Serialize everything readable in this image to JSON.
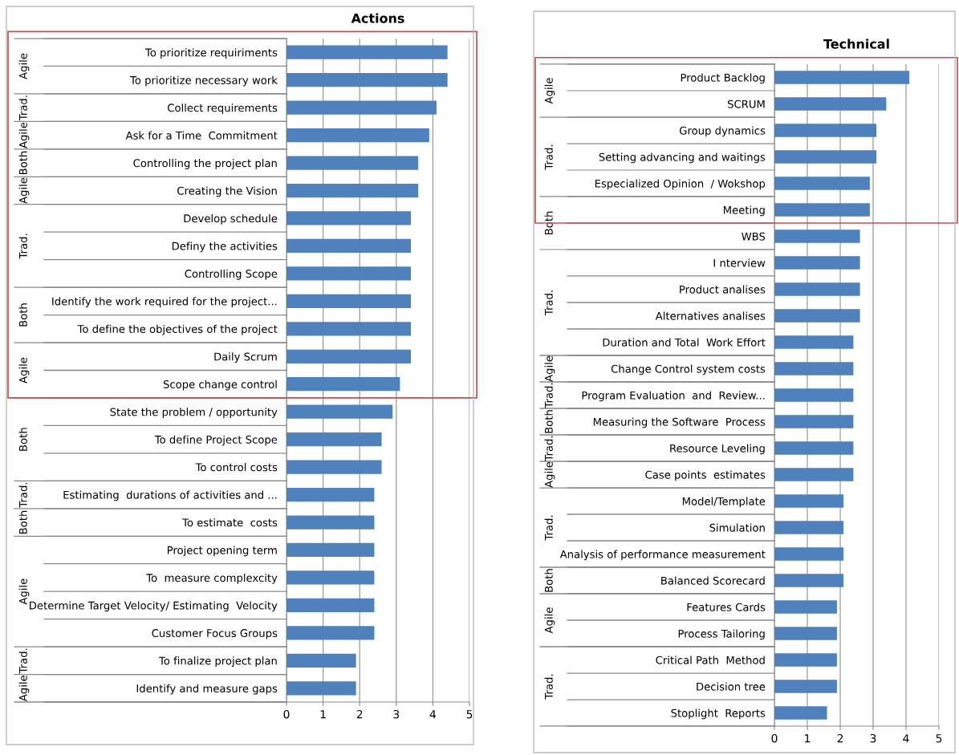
{
  "chart_data": [
    {
      "type": "bar",
      "orientation": "horizontal",
      "title": "Actions",
      "categories": [
        "To prioritize requiriments",
        "To prioritize necessary work",
        "Collect requirements",
        "Ask for a Time  Commitment",
        "Controlling the project plan",
        "Creating the Vision",
        "Develop schedule",
        "Definy the activities",
        "Controlling Scope",
        "Identify the work required for the project...",
        "To define the objectives of the project",
        "Daily Scrum",
        "Scope change control",
        "State the problem / opportunity",
        "To define Project Scope",
        "To control costs",
        "Estimating  durations of activities and ...",
        "To estimate  costs",
        "Project opening term",
        "To  measure complexcity",
        "Determine Target Velocity/ Estimating  Velocity",
        "Customer Focus Groups",
        "To finalize project plan",
        "Identify and measure gaps"
      ],
      "values": [
        4.4,
        4.4,
        4.1,
        3.9,
        3.6,
        3.6,
        3.4,
        3.4,
        3.4,
        3.4,
        3.4,
        3.4,
        3.1,
        2.9,
        2.6,
        2.6,
        2.4,
        2.4,
        2.4,
        2.4,
        2.4,
        2.4,
        1.9,
        1.9
      ],
      "color": "#4f81bd",
      "xlim": [
        0,
        5
      ],
      "xticks": [
        0,
        1,
        2,
        3,
        4,
        5
      ],
      "grid": "x",
      "annotations": [
        "Agile",
        "Trad.",
        "Agile",
        "Both",
        "Agile",
        "Trad.",
        "Both",
        "Agile",
        "Both",
        "Trad.",
        "Both",
        "Agile",
        "Trad.",
        "Agile"
      ]
    },
    {
      "type": "bar",
      "orientation": "horizontal",
      "title": "Technical",
      "categories": [
        "Product Backlog",
        "SCRUM",
        "Group dynamics",
        "Setting advancing and waitings",
        "Especialized Opinion  / Wokshop",
        "Meeting",
        "WBS",
        "I nterview",
        "Product analises",
        "Alternatives analises",
        "Duration and Total  Work Effort",
        "Change Control system costs",
        "Program Evaluation  and  Review...",
        "Measuring the Software  Process",
        "Resource Leveling",
        "Case points  estimates",
        "Model/Template",
        "Simulation",
        "Analysis of performance measurement",
        "Balanced Scorecard",
        "Features Cards",
        "Process Tailoring",
        "Critical Path  Method",
        "Decision tree",
        "Stoplight  Reports"
      ],
      "values": [
        4.1,
        3.4,
        3.1,
        3.1,
        2.9,
        2.9,
        2.6,
        2.6,
        2.6,
        2.6,
        2.4,
        2.4,
        2.4,
        2.4,
        2.4,
        2.4,
        2.1,
        2.1,
        2.1,
        2.1,
        1.9,
        1.9,
        1.9,
        1.9,
        1.6
      ],
      "color": "#4f81bd",
      "xlim": [
        0,
        5
      ],
      "xticks": [
        0,
        1,
        2,
        3,
        4,
        5
      ],
      "grid": "x",
      "annotations": [
        "Agile",
        "Trad.",
        "Both",
        "Trad.",
        "Agile",
        "Trad.",
        "Both",
        "Trad.",
        "Agile",
        "Trad.",
        "Both",
        "Agile",
        "Trad."
      ]
    }
  ]
}
